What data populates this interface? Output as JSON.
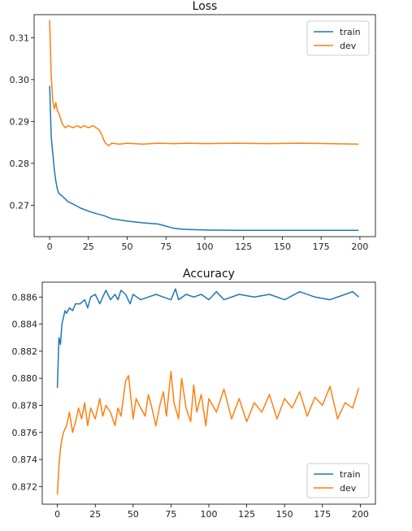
{
  "chart_data": [
    {
      "type": "line",
      "title": "Loss",
      "xlabel": "",
      "ylabel": "",
      "xlim": [
        -10,
        210
      ],
      "ylim": [
        0.2625,
        0.3155
      ],
      "xticks": [
        0,
        25,
        50,
        75,
        100,
        125,
        150,
        175,
        200
      ],
      "yticks": [
        0.27,
        0.28,
        0.29,
        0.3,
        0.31
      ],
      "ytick_labels": [
        "0.27",
        "0.28",
        "0.29",
        "0.30",
        "0.31"
      ],
      "grid": false,
      "legend": "top-right",
      "series": [
        {
          "name": "train",
          "color": "#1f77b4",
          "x": [
            0,
            1,
            2,
            3,
            4,
            5,
            6,
            8,
            10,
            12,
            15,
            18,
            20,
            25,
            30,
            35,
            40,
            50,
            60,
            70,
            75,
            80,
            85,
            90,
            100,
            120,
            150,
            180,
            199
          ],
          "values": [
            0.2985,
            0.2865,
            0.2825,
            0.2785,
            0.2758,
            0.2738,
            0.2728,
            0.2722,
            0.2715,
            0.2708,
            0.2703,
            0.2697,
            0.2693,
            0.2686,
            0.268,
            0.2675,
            0.2668,
            0.2662,
            0.2658,
            0.2655,
            0.265,
            0.2645,
            0.2643,
            0.2642,
            0.2641,
            0.264,
            0.264,
            0.264,
            0.264
          ]
        },
        {
          "name": "dev",
          "color": "#ff7f0e",
          "x": [
            0,
            1,
            2,
            3,
            4,
            5,
            6,
            8,
            10,
            12,
            15,
            18,
            20,
            22,
            25,
            28,
            30,
            32,
            34,
            35,
            36,
            38,
            40,
            45,
            50,
            60,
            70,
            80,
            90,
            100,
            120,
            140,
            160,
            180,
            199
          ],
          "values": [
            0.3142,
            0.301,
            0.295,
            0.293,
            0.2945,
            0.2925,
            0.292,
            0.2895,
            0.2885,
            0.289,
            0.2885,
            0.289,
            0.2885,
            0.289,
            0.2885,
            0.289,
            0.2885,
            0.288,
            0.2865,
            0.2855,
            0.2848,
            0.2842,
            0.2848,
            0.2846,
            0.2848,
            0.2846,
            0.2848,
            0.2847,
            0.2848,
            0.2847,
            0.2848,
            0.2847,
            0.2848,
            0.2847,
            0.2846
          ]
        }
      ]
    },
    {
      "type": "line",
      "title": "Accuracy",
      "xlabel": "",
      "ylabel": "",
      "xlim": [
        -10,
        210
      ],
      "ylim": [
        0.8707,
        0.8871
      ],
      "xticks": [
        0,
        25,
        50,
        75,
        100,
        125,
        150,
        175,
        200
      ],
      "yticks": [
        0.872,
        0.874,
        0.876,
        0.878,
        0.88,
        0.882,
        0.884,
        0.886
      ],
      "ytick_labels": [
        "0.872",
        "0.874",
        "0.876",
        "0.878",
        "0.880",
        "0.882",
        "0.884",
        "0.886"
      ],
      "grid": false,
      "legend": "bottom-right",
      "series": [
        {
          "name": "train",
          "color": "#1f77b4",
          "x": [
            0,
            1,
            2,
            3,
            4,
            5,
            6,
            8,
            10,
            12,
            15,
            18,
            20,
            22,
            25,
            28,
            30,
            32,
            35,
            38,
            40,
            42,
            45,
            48,
            50,
            55,
            60,
            65,
            70,
            75,
            78,
            80,
            85,
            90,
            95,
            100,
            105,
            110,
            120,
            130,
            140,
            150,
            160,
            170,
            180,
            190,
            195,
            199
          ],
          "values": [
            0.8793,
            0.883,
            0.8825,
            0.884,
            0.8845,
            0.885,
            0.8848,
            0.8852,
            0.885,
            0.8855,
            0.8855,
            0.8858,
            0.8852,
            0.886,
            0.8862,
            0.8855,
            0.886,
            0.8865,
            0.8858,
            0.8862,
            0.8858,
            0.8865,
            0.8862,
            0.8855,
            0.8862,
            0.8858,
            0.886,
            0.8862,
            0.886,
            0.8858,
            0.8866,
            0.8858,
            0.8862,
            0.886,
            0.8862,
            0.8858,
            0.8864,
            0.8858,
            0.8862,
            0.886,
            0.8862,
            0.8858,
            0.8864,
            0.886,
            0.8858,
            0.8862,
            0.8864,
            0.886
          ]
        },
        {
          "name": "dev",
          "color": "#ff7f0e",
          "x": [
            0,
            1,
            2,
            3,
            4,
            6,
            8,
            10,
            12,
            14,
            16,
            18,
            20,
            22,
            25,
            28,
            30,
            32,
            35,
            38,
            40,
            42,
            45,
            47,
            50,
            52,
            55,
            58,
            60,
            62,
            65,
            68,
            70,
            72,
            75,
            77,
            80,
            82,
            85,
            88,
            90,
            92,
            95,
            98,
            100,
            105,
            110,
            115,
            120,
            125,
            130,
            135,
            140,
            145,
            150,
            155,
            160,
            165,
            170,
            175,
            180,
            185,
            190,
            195,
            199
          ],
          "values": [
            0.8714,
            0.8735,
            0.8748,
            0.8755,
            0.876,
            0.8765,
            0.8775,
            0.876,
            0.8768,
            0.8778,
            0.877,
            0.8782,
            0.8765,
            0.8778,
            0.877,
            0.8785,
            0.8772,
            0.878,
            0.8775,
            0.8765,
            0.8778,
            0.8772,
            0.8798,
            0.8802,
            0.877,
            0.8785,
            0.8778,
            0.8772,
            0.8788,
            0.878,
            0.8765,
            0.8782,
            0.879,
            0.8772,
            0.8805,
            0.8782,
            0.877,
            0.88,
            0.8778,
            0.8768,
            0.8795,
            0.8775,
            0.8788,
            0.8765,
            0.8785,
            0.8775,
            0.8792,
            0.877,
            0.8785,
            0.8768,
            0.8782,
            0.8775,
            0.8788,
            0.877,
            0.8785,
            0.8778,
            0.879,
            0.8772,
            0.8786,
            0.878,
            0.8794,
            0.877,
            0.8782,
            0.8778,
            0.8793
          ]
        }
      ]
    }
  ]
}
